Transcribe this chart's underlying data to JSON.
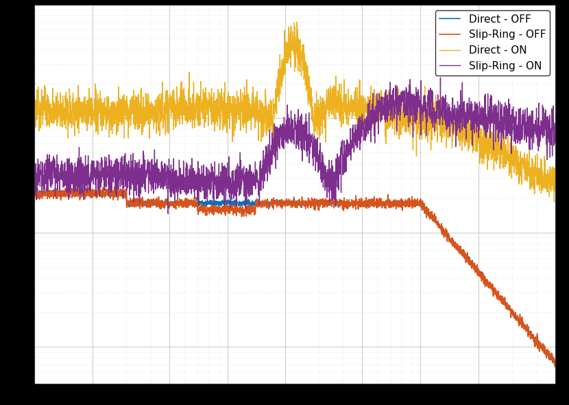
{
  "legend_labels": [
    "Direct - OFF",
    "Slip-Ring - OFF",
    "Direct - ON",
    "Slip-Ring - ON"
  ],
  "line_colors": [
    "#0072bd",
    "#d95319",
    "#edb120",
    "#7e2f8e"
  ],
  "background_color": "#ffffff",
  "grid_color": "#cccccc",
  "figsize": [
    8.3,
    5.9
  ],
  "dpi": 100
}
